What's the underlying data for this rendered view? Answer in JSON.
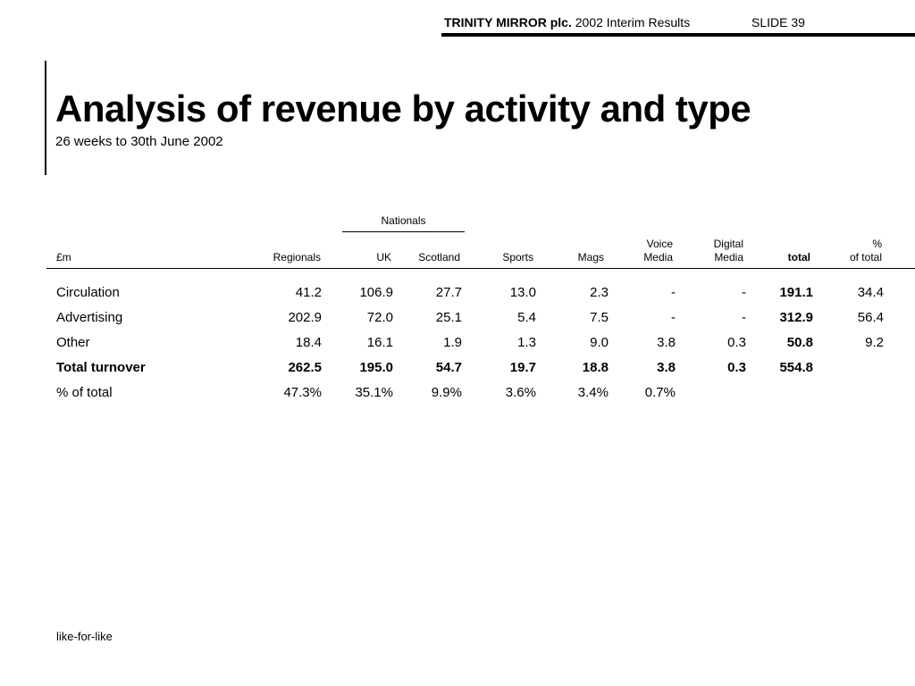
{
  "header": {
    "brand": "TRINITY MIRROR plc.",
    "report": "2002 Interim Results",
    "slide": "SLIDE 39"
  },
  "title": "Analysis of revenue by activity and type",
  "subtitle": "26 weeks to 30th June 2002",
  "table": {
    "group_label": "Nationals",
    "columns": {
      "unit": "£m",
      "regionals": "Regionals",
      "uk": "UK",
      "scotland": "Scotland",
      "sports": "Sports",
      "mags": "Mags",
      "voice_media_1": "Voice",
      "voice_media_2": "Media",
      "digital_media_1": "Digital",
      "digital_media_2": "Media",
      "total": "total",
      "pct_1": "%",
      "pct_2": "of total"
    },
    "rows": [
      {
        "label": "Circulation",
        "regionals": "41.2",
        "uk": "106.9",
        "scotland": "27.7",
        "sports": "13.0",
        "mags": "2.3",
        "voice": "-",
        "digital": "-",
        "total": "191.1",
        "pct": "34.4"
      },
      {
        "label": "Advertising",
        "regionals": "202.9",
        "uk": "72.0",
        "scotland": "25.1",
        "sports": "5.4",
        "mags": "7.5",
        "voice": "-",
        "digital": "-",
        "total": "312.9",
        "pct": "56.4"
      },
      {
        "label": "Other",
        "regionals": "18.4",
        "uk": "16.1",
        "scotland": "1.9",
        "sports": "1.3",
        "mags": "9.0",
        "voice": "3.8",
        "digital": "0.3",
        "total": "50.8",
        "pct": "9.2"
      },
      {
        "label": "Total turnover",
        "regionals": "262.5",
        "uk": "195.0",
        "scotland": "54.7",
        "sports": "19.7",
        "mags": "18.8",
        "voice": "3.8",
        "digital": "0.3",
        "total": "554.8",
        "pct": ""
      },
      {
        "label": "% of total",
        "regionals": "47.3%",
        "uk": "35.1%",
        "scotland": "9.9%",
        "sports": "3.6%",
        "mags": "3.4%",
        "voice": "0.7%",
        "digital": "",
        "total": "",
        "pct": ""
      }
    ]
  },
  "footer": "like-for-like"
}
